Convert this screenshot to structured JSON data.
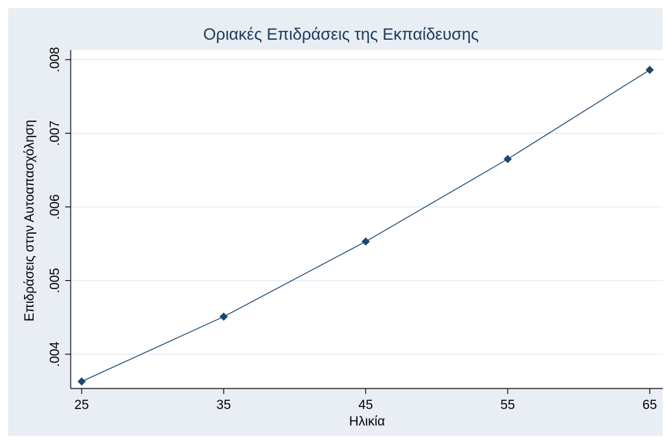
{
  "chart_data": {
    "type": "line",
    "title": "Οριακές Επιδράσεις της Εκπαίδευσης",
    "xlabel": "Ηλικία",
    "ylabel": "Επιδράσεις στην Αυτοαπασχόληση",
    "x": [
      25,
      35,
      45,
      55,
      65
    ],
    "x_ticks": [
      "25",
      "35",
      "45",
      "55",
      "65"
    ],
    "y_ticks": [
      0.004,
      0.005,
      0.006,
      0.007,
      0.008
    ],
    "y_tick_labels": [
      ".004",
      ".005",
      ".006",
      ".007",
      ".008"
    ],
    "xlim": [
      25,
      65
    ],
    "ylim": [
      0.0036,
      0.008
    ],
    "grid": true,
    "legend": "none",
    "series": [
      {
        "values": [
          0.00363,
          0.00451,
          0.00553,
          0.00665,
          0.00786
        ]
      }
    ],
    "colors": {
      "background": "#ffffff",
      "plot_region": "#e9eef4",
      "plot_area": "#ffffff",
      "grid": "#e6eef5",
      "line": "#1a476f",
      "marker": "#1a476f",
      "title": "#1c3a5a"
    }
  }
}
